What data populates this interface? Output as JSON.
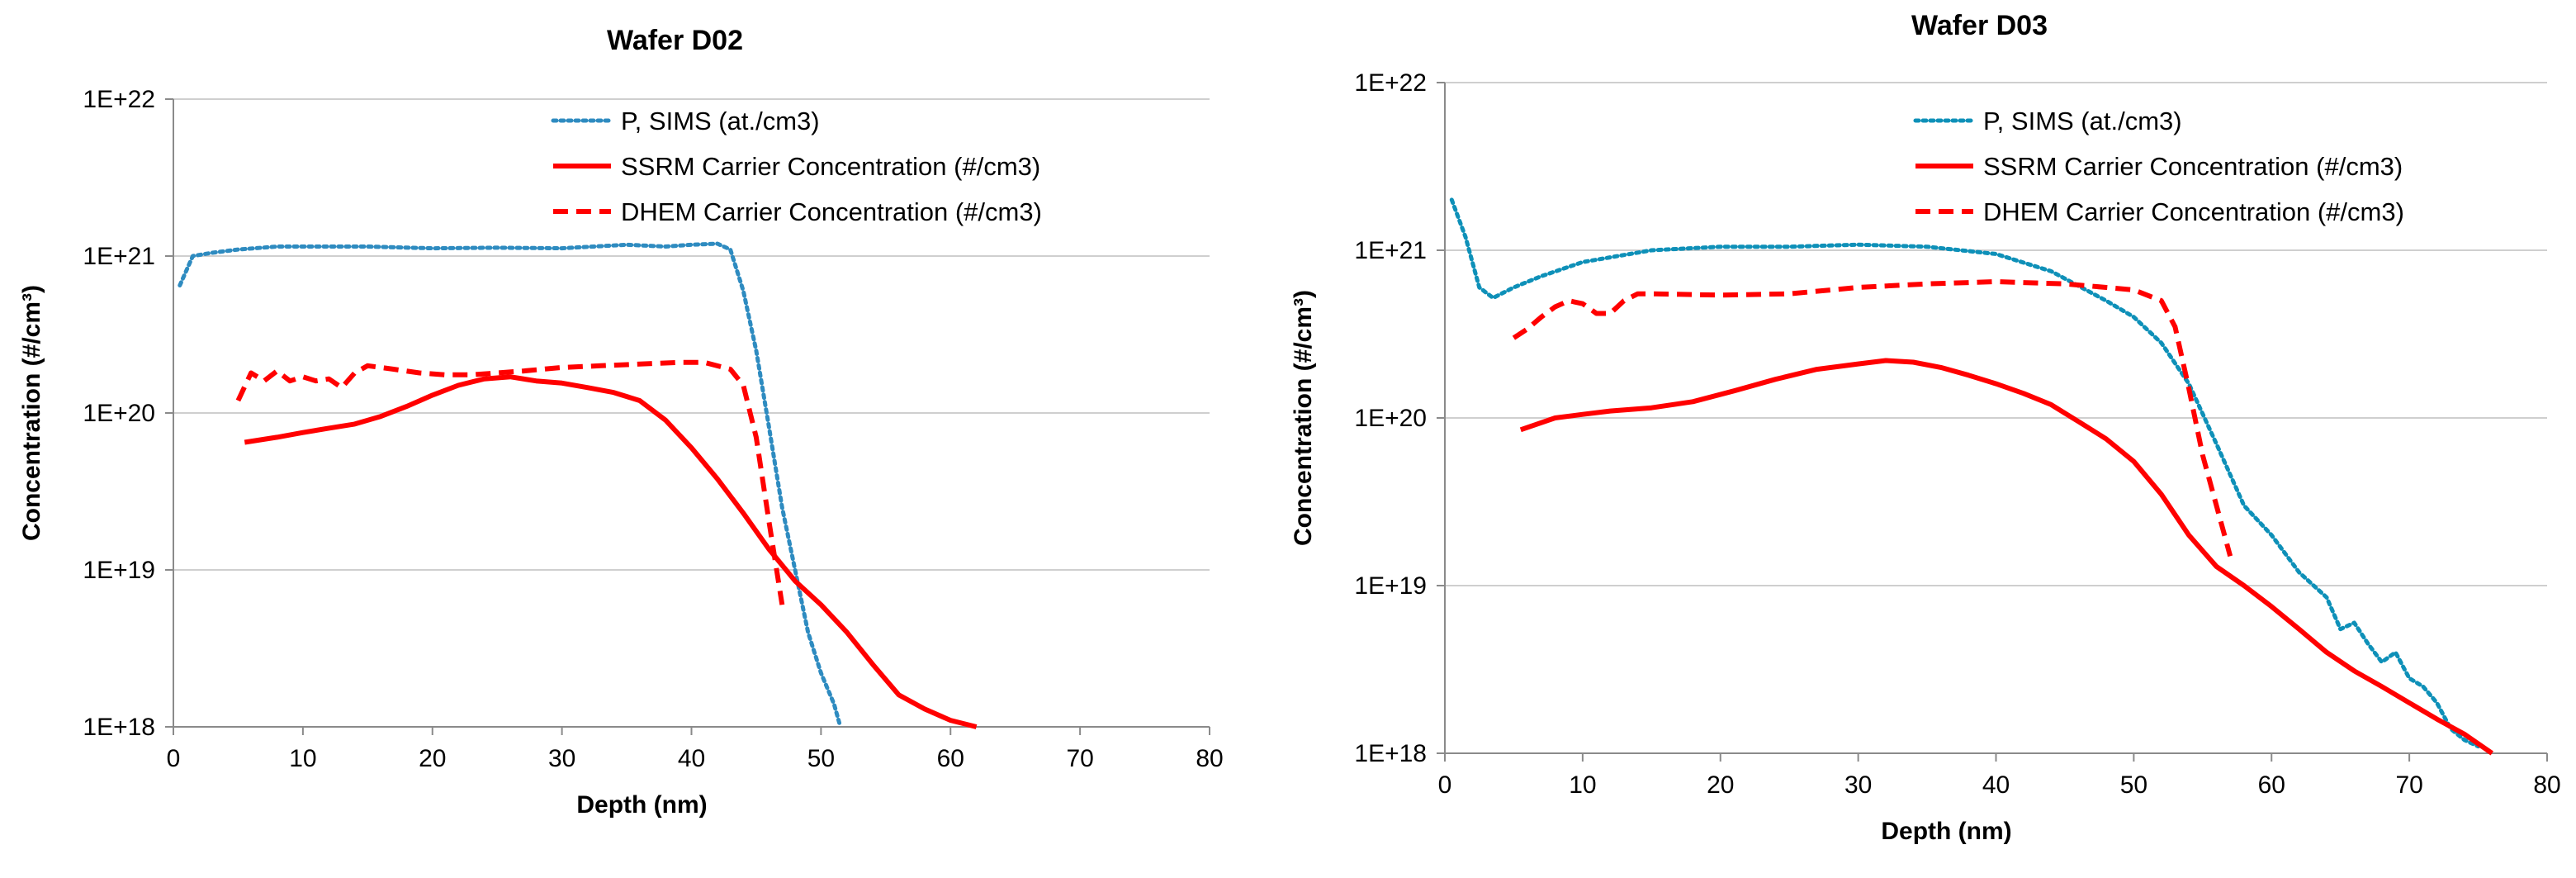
{
  "chart_data": [
    {
      "type": "line",
      "title": "Wafer D02",
      "xlabel": "Depth (nm)",
      "ylabel": "Concentration (#/cm³)",
      "xlim": [
        0,
        80
      ],
      "ylim": [
        1e+18,
        1e+22
      ],
      "yscale": "log",
      "x_ticks": [
        0,
        10,
        20,
        30,
        40,
        50,
        60,
        70,
        80
      ],
      "y_ticks": [
        {
          "value": 1e+18,
          "label": "1E+18"
        },
        {
          "value": 1e+19,
          "label": "1E+19"
        },
        {
          "value": 1e+20,
          "label": "1E+20"
        },
        {
          "value": 1e+21,
          "label": "1E+21"
        },
        {
          "value": 1e+22,
          "label": "1E+22"
        }
      ],
      "legend_position": "top-right",
      "series": [
        {
          "name": "P, SIMS (at./cm3)",
          "color": "#2E8BC0",
          "style": "dotted",
          "x": [
            0.5,
            1.5,
            3,
            5,
            8,
            10,
            13,
            15,
            20,
            25,
            30,
            35,
            38,
            40,
            42,
            43,
            44,
            45,
            46,
            47,
            48,
            49,
            50,
            51,
            51.5
          ],
          "y": [
            6.5e+20,
            1e+21,
            1.05e+21,
            1.1e+21,
            1.15e+21,
            1.15e+21,
            1.15e+21,
            1.15e+21,
            1.12e+21,
            1.13e+21,
            1.12e+21,
            1.18e+21,
            1.15e+21,
            1.18e+21,
            1.2e+21,
            1.1e+21,
            6e+20,
            2.5e+20,
            8e+19,
            2.5e+19,
            1e+19,
            4e+18,
            2.2e+18,
            1.4e+18,
            1e+18
          ]
        },
        {
          "name": "SSRM Carrier Concentration (#/cm3)",
          "color": "#FF0000",
          "style": "solid",
          "x": [
            5.5,
            8,
            10,
            12,
            14,
            16,
            18,
            20,
            22,
            24,
            26,
            28,
            30,
            32,
            34,
            36,
            38,
            40,
            42,
            44,
            46,
            48,
            50,
            52,
            54,
            56,
            58,
            60,
            62
          ],
          "y": [
            6.5e+19,
            7e+19,
            7.5e+19,
            8e+19,
            8.5e+19,
            9.5e+19,
            1.1e+20,
            1.3e+20,
            1.5e+20,
            1.65e+20,
            1.7e+20,
            1.6e+20,
            1.55e+20,
            1.45e+20,
            1.35e+20,
            1.2e+20,
            9e+19,
            6e+19,
            3.8e+19,
            2.3e+19,
            1.35e+19,
            8.5e+18,
            6e+18,
            4e+18,
            2.5e+18,
            1.6e+18,
            1.3e+18,
            1.1e+18,
            1e+18
          ]
        },
        {
          "name": "DHEM Carrier Concentration (#/cm3)",
          "color": "#FF0000",
          "style": "dashed",
          "x": [
            5,
            6,
            7,
            8,
            9,
            10,
            11,
            12,
            13,
            14,
            15,
            17,
            19,
            21,
            23,
            25,
            27,
            30,
            33,
            36,
            39,
            41,
            43,
            44,
            45,
            46,
            47
          ],
          "y": [
            1.2e+20,
            1.8e+20,
            1.6e+20,
            1.85e+20,
            1.6e+20,
            1.7e+20,
            1.6e+20,
            1.65e+20,
            1.45e+20,
            1.8e+20,
            2e+20,
            1.9e+20,
            1.8e+20,
            1.75e+20,
            1.75e+20,
            1.8e+20,
            1.85e+20,
            1.95e+20,
            2e+20,
            2.05e+20,
            2.1e+20,
            2.1e+20,
            1.9e+20,
            1.5e+20,
            7e+19,
            2e+19,
            6e+18
          ]
        }
      ]
    },
    {
      "type": "line",
      "title": "Wafer D03",
      "xlabel": "Depth (nm)",
      "ylabel": "Concentration (#/cm³)",
      "xlim": [
        0,
        80
      ],
      "ylim": [
        1e+18,
        1e+22
      ],
      "yscale": "log",
      "x_ticks": [
        0,
        10,
        20,
        30,
        40,
        50,
        60,
        70,
        80
      ],
      "y_ticks": [
        {
          "value": 1e+18,
          "label": "1E+18"
        },
        {
          "value": 1e+19,
          "label": "1E+19"
        },
        {
          "value": 1e+20,
          "label": "1E+20"
        },
        {
          "value": 1e+21,
          "label": "1E+21"
        },
        {
          "value": 1e+22,
          "label": "1E+22"
        }
      ],
      "legend_position": "top-right",
      "series": [
        {
          "name": "P, SIMS (at./cm3)",
          "color": "#0E90B8",
          "style": "dotted",
          "x": [
            0.5,
            1.5,
            2.5,
            3.5,
            5,
            7,
            10,
            15,
            20,
            25,
            30,
            35,
            40,
            44,
            48,
            50,
            52,
            54,
            56,
            58,
            60,
            62,
            64,
            65,
            66,
            67,
            68,
            69,
            70,
            71,
            72,
            73,
            74,
            75
          ],
          "y": [
            2e+21,
            1.2e+21,
            6e+20,
            5.2e+20,
            6e+20,
            7e+20,
            8.5e+20,
            1e+21,
            1.05e+21,
            1.05e+21,
            1.08e+21,
            1.05e+21,
            9.5e+20,
            7.5e+20,
            5e+20,
            4e+20,
            2.8e+20,
            1.6e+20,
            7e+19,
            3e+19,
            2e+19,
            1.2e+19,
            8.5e+18,
            5.5e+18,
            6e+18,
            4.5e+18,
            3.5e+18,
            4e+18,
            2.8e+18,
            2.5e+18,
            2e+18,
            1.4e+18,
            1.2e+18,
            1.1e+18
          ]
        },
        {
          "name": "SSRM Carrier Concentration (#/cm3)",
          "color": "#FF0000",
          "style": "solid",
          "x": [
            5.5,
            8,
            10,
            12,
            15,
            18,
            21,
            24,
            27,
            30,
            32,
            34,
            36,
            38,
            40,
            42,
            44,
            46,
            48,
            50,
            52,
            54,
            56,
            58,
            60,
            62,
            64,
            66,
            68,
            70,
            72,
            74,
            76
          ],
          "y": [
            8.5e+19,
            1e+20,
            1.05e+20,
            1.1e+20,
            1.15e+20,
            1.25e+20,
            1.45e+20,
            1.7e+20,
            1.95e+20,
            2.1e+20,
            2.2e+20,
            2.15e+20,
            2e+20,
            1.8e+20,
            1.6e+20,
            1.4e+20,
            1.2e+20,
            9.5e+19,
            7.5e+19,
            5.5e+19,
            3.5e+19,
            2e+19,
            1.3e+19,
            1e+19,
            7.5e+18,
            5.5e+18,
            4e+18,
            3.1e+18,
            2.5e+18,
            2e+18,
            1.6e+18,
            1.3e+18,
            1e+18
          ]
        },
        {
          "name": "DHEM Carrier Concentration (#/cm3)",
          "color": "#FF0000",
          "style": "dashed",
          "x": [
            5,
            6,
            7,
            8,
            9,
            10,
            11,
            12,
            13,
            14,
            15,
            20,
            25,
            30,
            35,
            40,
            45,
            48,
            50,
            52,
            53,
            54,
            55,
            56,
            57
          ],
          "y": [
            3e+20,
            3.4e+20,
            4e+20,
            4.6e+20,
            5e+20,
            4.8e+20,
            4.2e+20,
            4.2e+20,
            5e+20,
            5.5e+20,
            5.5e+20,
            5.4e+20,
            5.5e+20,
            6e+20,
            6.3e+20,
            6.5e+20,
            6.3e+20,
            6e+20,
            5.8e+20,
            5e+20,
            3.5e+20,
            1.5e+20,
            6e+19,
            3e+19,
            1.5e+19
          ]
        }
      ]
    }
  ]
}
